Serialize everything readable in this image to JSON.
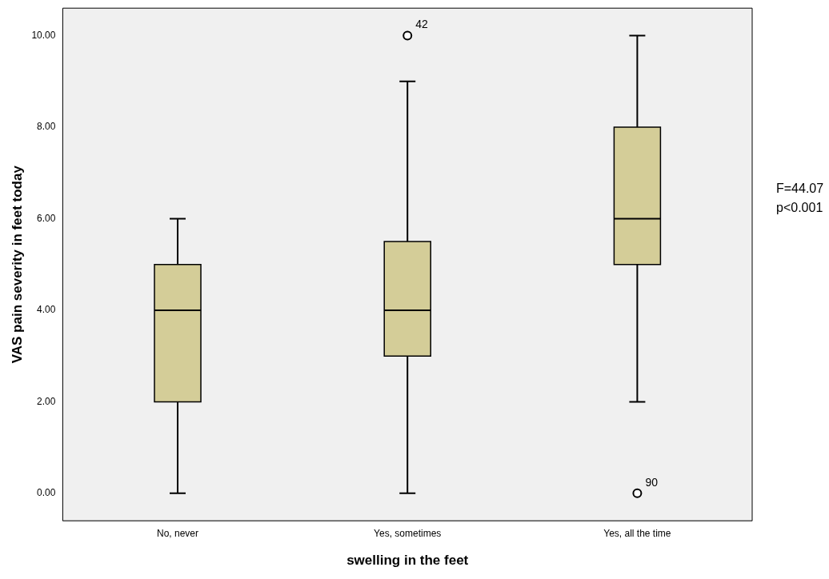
{
  "chart_data": {
    "type": "box",
    "xlabel": "swelling in the feet",
    "ylabel": "VAS pain severity in feet today",
    "categories": [
      "No, never",
      "Yes, sometimes",
      "Yes, all the time"
    ],
    "color": "#d4cd98",
    "boxes": [
      {
        "low": 0,
        "q1": 2,
        "median": 4,
        "q3": 5,
        "high": 6
      },
      {
        "low": 0,
        "q1": 3,
        "median": 4,
        "q3": 5.5,
        "high": 9,
        "outliers": [
          10
        ]
      },
      {
        "low": 2,
        "q1": 5,
        "median": 6,
        "q3": 8,
        "high": 10,
        "outliers": [
          0
        ]
      }
    ],
    "ylim": [
      -0.6,
      10.6
    ],
    "yticks": [
      {
        "value": 0,
        "label": "0.00"
      },
      {
        "value": 2,
        "label": "2.00"
      },
      {
        "value": 4,
        "label": "4.00"
      },
      {
        "value": 6,
        "label": "6.00"
      },
      {
        "value": 8,
        "label": "8.00"
      },
      {
        "value": 10,
        "label": "10.00"
      }
    ],
    "grid": false,
    "legend": false,
    "annotations": [
      "42",
      "90",
      "F=44.07",
      "p<0.001"
    ]
  }
}
